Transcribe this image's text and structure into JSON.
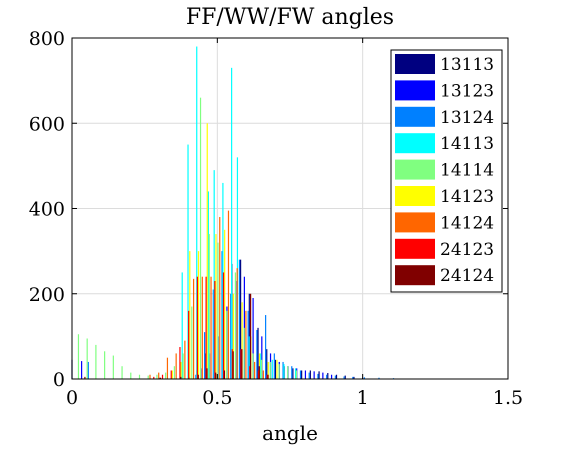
{
  "chart_data": {
    "type": "bar",
    "title": "FF/WW/FW angles",
    "xlabel": "angle",
    "ylabel": "",
    "xlim": [
      0,
      1.5
    ],
    "ylim": [
      0,
      800
    ],
    "xticks": [
      "0",
      "0.5",
      "1",
      "1.5"
    ],
    "yticks": [
      "0",
      "200",
      "400",
      "600",
      "800"
    ],
    "grid": true,
    "legend_position": "top-right",
    "bin_width": 0.0275,
    "series": [
      {
        "name": "13113",
        "color": "#000080",
        "x": [
          0.0,
          0.3,
          0.43,
          0.46,
          0.49,
          0.52,
          0.55,
          0.58,
          0.61,
          0.64,
          0.67,
          0.7,
          0.73,
          0.76,
          0.79,
          0.82,
          0.85,
          0.88,
          0.91,
          0.94,
          0.97,
          1.0
        ],
        "values": [
          45,
          3,
          20,
          60,
          120,
          210,
          270,
          280,
          200,
          120,
          70,
          45,
          30,
          25,
          20,
          20,
          18,
          14,
          10,
          8,
          5,
          3
        ]
      },
      {
        "name": "13123",
        "color": "#0000ff",
        "x": [
          0.03,
          0.4,
          0.44,
          0.47,
          0.5,
          0.53,
          0.56,
          0.59,
          0.62,
          0.65,
          0.68,
          0.71,
          0.74,
          0.77,
          0.8,
          0.83,
          0.86,
          0.89
        ],
        "values": [
          42,
          5,
          25,
          60,
          100,
          170,
          230,
          240,
          190,
          100,
          60,
          40,
          30,
          25,
          20,
          18,
          15,
          10
        ]
      },
      {
        "name": "13124",
        "color": "#0080ff",
        "x": [
          0.05,
          0.42,
          0.45,
          0.48,
          0.51,
          0.54,
          0.57,
          0.6,
          0.63,
          0.66,
          0.69,
          0.72,
          0.75,
          0.78,
          0.81,
          0.84,
          0.87,
          0.9,
          0.93,
          0.96,
          1.0,
          1.05,
          1.1,
          1.15
        ],
        "values": [
          40,
          10,
          110,
          210,
          300,
          200,
          280,
          160,
          115,
          150,
          60,
          40,
          30,
          20,
          15,
          12,
          10,
          8,
          6,
          5,
          4,
          3,
          2,
          1
        ]
      },
      {
        "name": "14113",
        "color": "#00ffff",
        "x": [
          0.37,
          0.39,
          0.42,
          0.46,
          0.48,
          0.51,
          0.54,
          0.56,
          0.6,
          0.64,
          0.68,
          0.72,
          0.76
        ],
        "values": [
          250,
          550,
          780,
          440,
          490,
          460,
          730,
          520,
          100,
          60,
          45,
          35,
          25
        ]
      },
      {
        "name": "14114",
        "color": "#80ff80",
        "x": [
          0.01,
          0.04,
          0.07,
          0.1,
          0.13,
          0.16,
          0.19,
          0.22,
          0.25,
          0.28,
          0.31,
          0.34,
          0.37,
          0.4,
          0.43,
          0.46,
          0.49,
          0.52,
          0.55,
          0.58,
          0.61,
          0.64,
          0.67,
          0.7,
          0.73,
          0.76
        ],
        "values": [
          105,
          95,
          80,
          65,
          55,
          30,
          15,
          10,
          8,
          10,
          15,
          30,
          60,
          170,
          660,
          340,
          320,
          160,
          250,
          120,
          60,
          45,
          40,
          35,
          30,
          20
        ]
      },
      {
        "name": "14123",
        "color": "#ffff00",
        "x": [
          0.33,
          0.36,
          0.39,
          0.42,
          0.45,
          0.48,
          0.51,
          0.54,
          0.57,
          0.6,
          0.63,
          0.66,
          0.69
        ],
        "values": [
          20,
          40,
          300,
          300,
          600,
          340,
          350,
          200,
          180,
          100,
          60,
          40,
          45
        ]
      },
      {
        "name": "14124",
        "color": "#ff6600",
        "x": [
          0.25,
          0.28,
          0.31,
          0.34,
          0.37,
          0.4,
          0.43,
          0.46,
          0.49,
          0.52,
          0.55,
          0.58,
          0.61,
          0.64
        ],
        "values": [
          10,
          15,
          50,
          60,
          90,
          235,
          240,
          240,
          380,
          395,
          260,
          160,
          40,
          20
        ]
      },
      {
        "name": "24123",
        "color": "#ff0000",
        "x": [
          0.26,
          0.29,
          0.32,
          0.35,
          0.38,
          0.41,
          0.44,
          0.47,
          0.5,
          0.53,
          0.56,
          0.59,
          0.62,
          0.65
        ],
        "values": [
          5,
          10,
          20,
          75,
          160,
          240,
          240,
          230,
          250,
          70,
          70,
          30,
          20,
          10
        ]
      },
      {
        "name": "24124",
        "color": "#800000",
        "x": [
          0.02,
          0.28,
          0.35,
          0.41,
          0.44,
          0.47,
          0.5,
          0.53,
          0.56,
          0.59,
          0.62,
          0.65
        ],
        "values": [
          5,
          3,
          5,
          10,
          25,
          15,
          20,
          65,
          70,
          200,
          30,
          10
        ]
      }
    ]
  }
}
